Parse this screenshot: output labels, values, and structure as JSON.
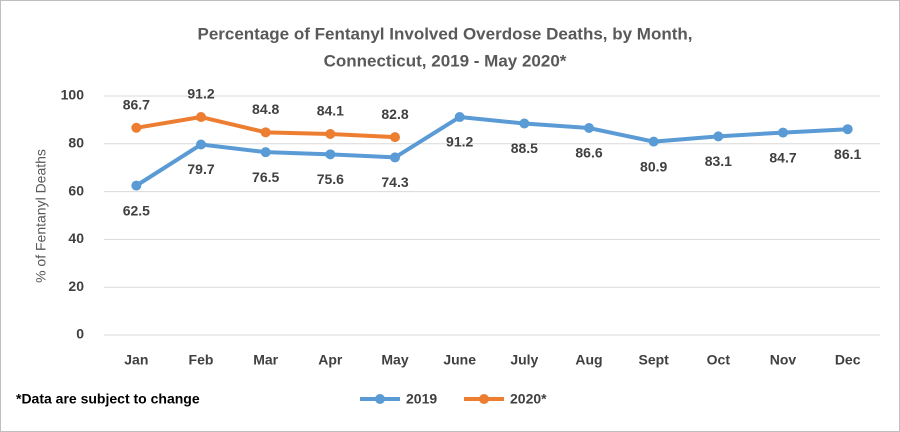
{
  "chart_data": {
    "type": "line",
    "title": [
      "Percentage of Fentanyl Involved Overdose Deaths, by Month,",
      "Connecticut, 2019 - May 2020*"
    ],
    "y_label": "% of Fentanyl Deaths",
    "annotation": "*Data are subject to change",
    "categories": [
      "Jan",
      "Feb",
      "Mar",
      "Apr",
      "May",
      "June",
      "July",
      "Aug",
      "Sept",
      "Oct",
      "Nov",
      "Dec"
    ],
    "series": [
      {
        "name": "2019",
        "color": "#5b9bd5",
        "values": [
          62.5,
          79.7,
          76.5,
          75.6,
          74.3,
          91.2,
          88.5,
          86.6,
          80.9,
          83.1,
          84.7,
          86.1
        ]
      },
      {
        "name": "2020*",
        "color": "#ed7d31",
        "values": [
          86.7,
          91.2,
          84.8,
          84.1,
          82.8,
          null,
          null,
          null,
          null,
          null,
          null,
          null
        ]
      }
    ],
    "ylim": [
      0,
      100
    ],
    "yticks": [
      0,
      20,
      40,
      60,
      80,
      100
    ],
    "grid": true,
    "legend": "bottom"
  }
}
